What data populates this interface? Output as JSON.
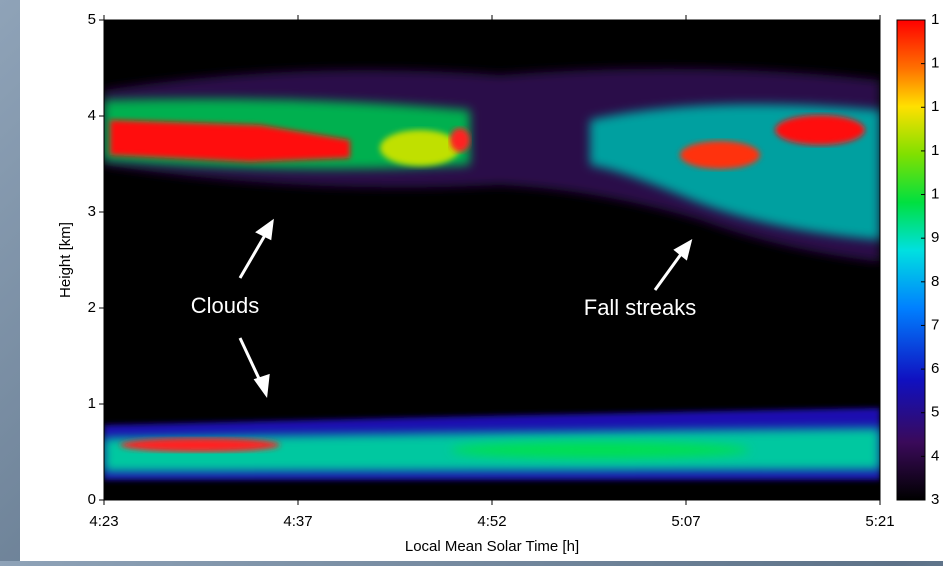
{
  "chart_data": {
    "type": "heatmap",
    "xlabel": "Local Mean Solar Time [h]",
    "ylabel": "Height [km]",
    "xticks": [
      "4:23",
      "4:37",
      "4:52",
      "5:07",
      "5:21"
    ],
    "ylim": [
      0,
      5
    ],
    "yticks": [
      0,
      1,
      2,
      3,
      4,
      5
    ],
    "colorbar_labels": [
      "1",
      "1",
      "1",
      "1",
      "1",
      "9",
      "8",
      "7",
      "6",
      "5",
      "4",
      "3"
    ],
    "annotations": [
      "Clouds",
      "Fall streaks"
    ]
  }
}
